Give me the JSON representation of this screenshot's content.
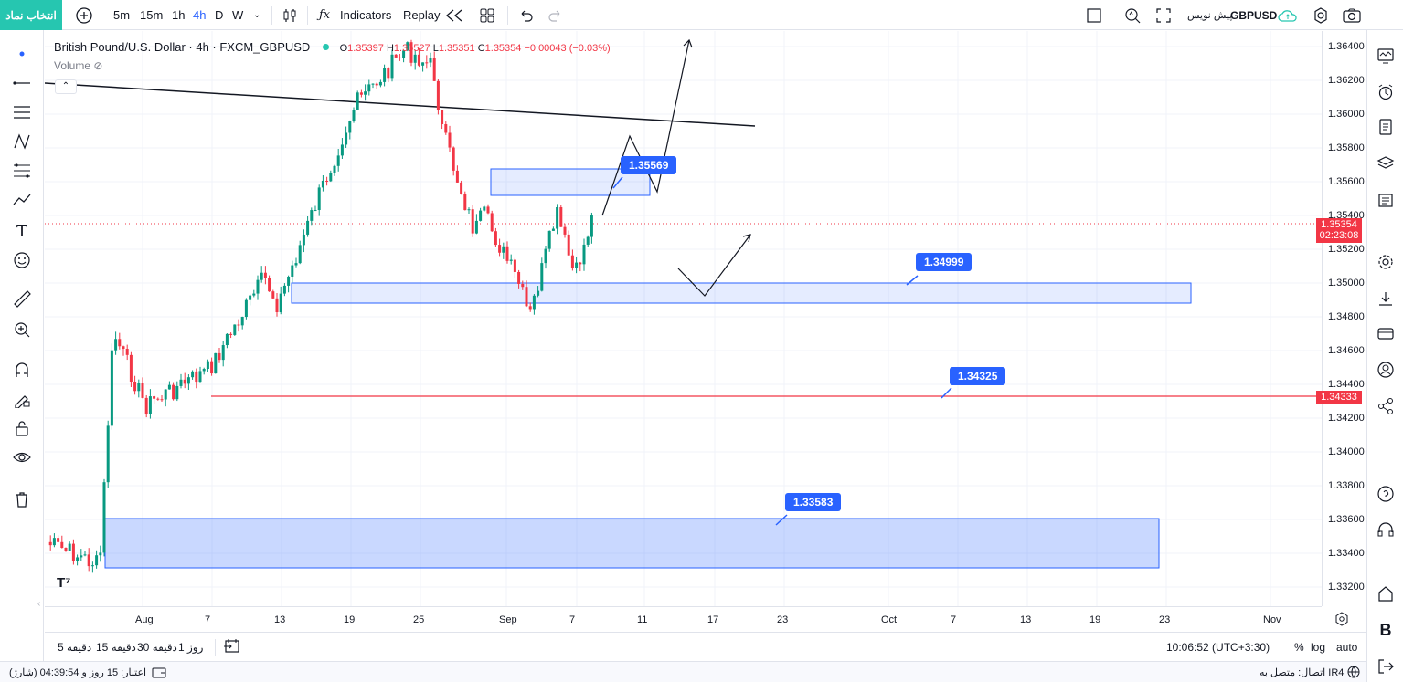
{
  "topbar": {
    "symbol_button": "انتخاب نماد",
    "intervals": [
      "5m",
      "15m",
      "1h",
      "4h",
      "D",
      "W"
    ],
    "active_interval": "4h",
    "indicators": "Indicators",
    "replay": "Replay",
    "symbol_name": "GBPUSD",
    "publish": "پیش نویس"
  },
  "legend": {
    "title": "British Pound/U.S. Dollar · 4h · FXCM_GBPUSD",
    "o_label": "O",
    "o": "1.35397",
    "h_label": "H",
    "h": "1.35527",
    "l_label": "L",
    "l": "1.35351",
    "c_label": "C",
    "c": "1.35354",
    "change": "−0.00043 (−0.03%)",
    "volume": "Volume"
  },
  "price_axis": {
    "labels": [
      "1.36400",
      "1.36200",
      "1.36000",
      "1.35800",
      "1.35600",
      "1.35400",
      "1.35200",
      "1.35000",
      "1.34800",
      "1.34600",
      "1.34400",
      "1.34200",
      "1.34000",
      "1.33800",
      "1.33600",
      "1.33400",
      "1.33200"
    ],
    "last_price": "1.35354",
    "countdown": "02:23:08",
    "line_price": "1.34333"
  },
  "time_axis": {
    "labels": [
      "Aug",
      "7",
      "13",
      "19",
      "25",
      "Sep",
      "7",
      "11",
      "17",
      "23",
      "Oct",
      "7",
      "13",
      "19",
      "23",
      "Nov"
    ]
  },
  "annotations": {
    "tag1": "1.35569",
    "tag2": "1.34999",
    "tag3": "1.34325",
    "tag4": "1.33583"
  },
  "bottombar": {
    "ranges": [
      "5 دقیقه",
      "15 دقیقه",
      "30 دقیقه",
      "1 روز"
    ],
    "clock": "10:06:52 (UTC+3:30)",
    "percent": "%",
    "log": "log",
    "auto": "auto"
  },
  "statusbar": {
    "credit": "اعتبار: 15 روز و 04:39:54 (شارژ)",
    "connection": "اتصال: متصل به IR4"
  },
  "colors": {
    "accent": "#2962ff",
    "up": "#089981",
    "down": "#f23645",
    "brand": "#26c6b0"
  }
}
